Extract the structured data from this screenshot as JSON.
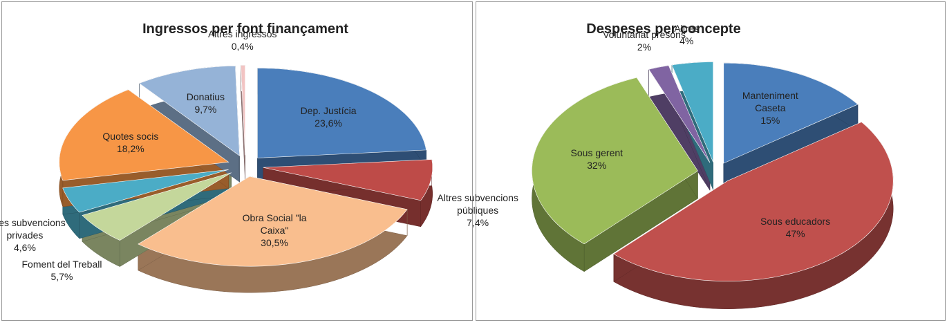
{
  "chart_data": [
    {
      "type": "pie",
      "title": "Ingressos per font finançament",
      "categories": [
        "Dep. Justícia",
        "Altres subvencions públiques",
        "Obra Social \"la Caixa\"",
        "Foment del Treball",
        "Altres subvencions privades",
        "Quotes socis",
        "Donatius",
        "Altres ingressos"
      ],
      "values": [
        23.6,
        7.4,
        30.5,
        5.7,
        4.6,
        18.2,
        9.7,
        0.4
      ],
      "value_labels": [
        "23,6%",
        "7,4%",
        "30,5%",
        "5,7%",
        "4,6%",
        "18,2%",
        "9,7%",
        "0,4%"
      ],
      "colors": [
        "#4a7ebb",
        "#be4b48",
        "#f9be8e",
        "#c4d79b",
        "#4bacc6",
        "#f79646",
        "#95b3d7",
        "#f2c4c3"
      ]
    },
    {
      "type": "pie",
      "title": "Despeses per concepte",
      "categories": [
        "Manteniment Caseta",
        "Sous educadors",
        "Sous gerent",
        "Voluntariat presons",
        "Altres"
      ],
      "values": [
        15,
        47,
        32,
        2,
        4
      ],
      "value_labels": [
        "15%",
        "47%",
        "32%",
        "2%",
        "4%"
      ],
      "colors": [
        "#4a7ebb",
        "#c0504d",
        "#9bbb59",
        "#8064a2",
        "#4bacc6"
      ]
    }
  ]
}
